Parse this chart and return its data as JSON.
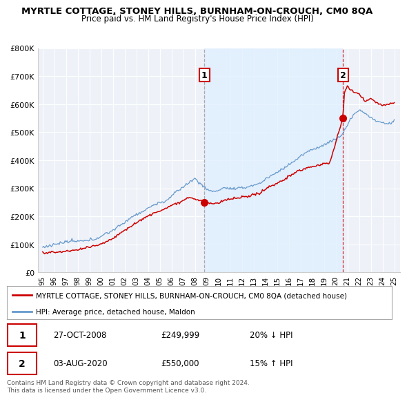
{
  "title": "MYRTLE COTTAGE, STONEY HILLS, BURNHAM-ON-CROUCH, CM0 8QA",
  "subtitle": "Price paid vs. HM Land Registry's House Price Index (HPI)",
  "legend_label_red": "MYRTLE COTTAGE, STONEY HILLS, BURNHAM-ON-CROUCH, CM0 8QA (detached house)",
  "legend_label_blue": "HPI: Average price, detached house, Maldon",
  "annotation1_label": "1",
  "annotation1_date": "27-OCT-2008",
  "annotation1_price": "£249,999",
  "annotation1_hpi": "20% ↓ HPI",
  "annotation2_label": "2",
  "annotation2_date": "03-AUG-2020",
  "annotation2_price": "£550,000",
  "annotation2_hpi": "15% ↑ HPI",
  "footer": "Contains HM Land Registry data © Crown copyright and database right 2024.\nThis data is licensed under the Open Government Licence v3.0.",
  "ylim": [
    0,
    800000
  ],
  "yticks": [
    0,
    100000,
    200000,
    300000,
    400000,
    500000,
    600000,
    700000,
    800000
  ],
  "ytick_labels": [
    "£0",
    "£100K",
    "£200K",
    "£300K",
    "£400K",
    "£500K",
    "£600K",
    "£700K",
    "£800K"
  ],
  "year_start": 1995,
  "year_end": 2025,
  "red_color": "#cc0000",
  "blue_color": "#6699cc",
  "shade_color": "#ddeeff",
  "vline1_color": "#999999",
  "vline2_color": "#cc0000",
  "bg_color": "#ffffff",
  "plot_bg_color": "#eef2f8"
}
